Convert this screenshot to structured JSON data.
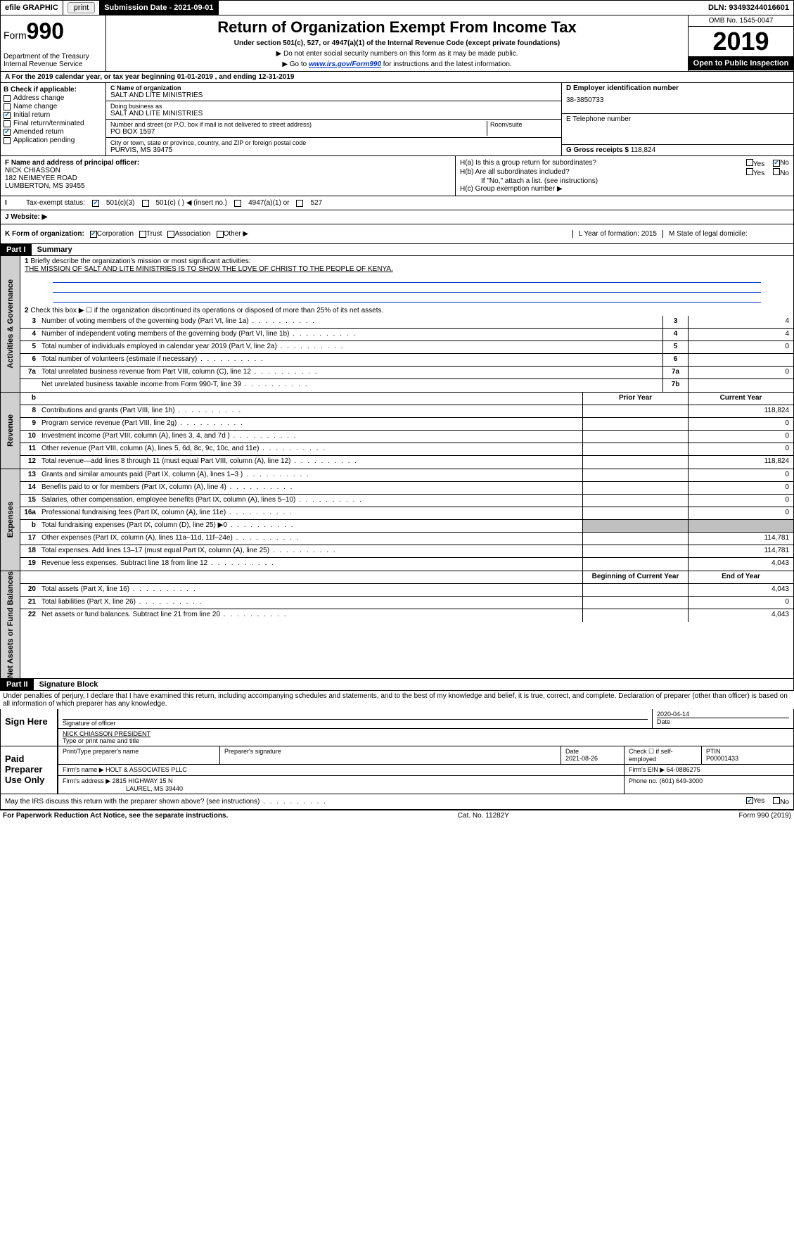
{
  "topbar": {
    "efile": "efile GRAPHIC",
    "print": "print",
    "subdate_lbl": "Submission Date - 2021-09-01",
    "dln": "DLN: 93493244016601"
  },
  "header": {
    "form_prefix": "Form",
    "form_num": "990",
    "dept": "Department of the Treasury",
    "irs": "Internal Revenue Service",
    "title": "Return of Organization Exempt From Income Tax",
    "sub": "Under section 501(c), 527, or 4947(a)(1) of the Internal Revenue Code (except private foundations)",
    "note1": "▶ Do not enter social security numbers on this form as it may be made public.",
    "note2_pre": "▶ Go to ",
    "note2_link": "www.irs.gov/Form990",
    "note2_post": " for instructions and the latest information.",
    "omb": "OMB No. 1545-0047",
    "year": "2019",
    "open": "Open to Public Inspection"
  },
  "row_a": "A For the 2019 calendar year, or tax year beginning 01-01-2019   , and ending 12-31-2019",
  "b": {
    "hdr": "B Check if applicable:",
    "items": [
      {
        "label": "Address change",
        "checked": false
      },
      {
        "label": "Name change",
        "checked": false
      },
      {
        "label": "Initial return",
        "checked": true
      },
      {
        "label": "Final return/terminated",
        "checked": false
      },
      {
        "label": "Amended return",
        "checked": true
      },
      {
        "label": "Application pending",
        "checked": false
      }
    ]
  },
  "c": {
    "name_lbl": "C Name of organization",
    "name": "SALT AND LITE MINISTRIES",
    "dba_lbl": "Doing business as",
    "dba": "SALT AND LITE MINISTRIES",
    "addr_lbl": "Number and street (or P.O. box if mail is not delivered to street address)",
    "room_lbl": "Room/suite",
    "addr": "PO BOX 1597",
    "city_lbl": "City or town, state or province, country, and ZIP or foreign postal code",
    "city": "PURVIS, MS  39475"
  },
  "d": {
    "lbl": "D Employer identification number",
    "val": "38-3850733"
  },
  "e": {
    "lbl": "E Telephone number",
    "val": ""
  },
  "g": {
    "lbl": "G Gross receipts $",
    "val": "118,824"
  },
  "f": {
    "lbl": "F  Name and address of principal officer:",
    "name": "NICK CHIASSON",
    "addr1": "182 NEIMEYEE ROAD",
    "addr2": "LUMBERTON, MS  39455"
  },
  "h": {
    "a": "H(a)  Is this a group return for subordinates?",
    "b": "H(b)  Are all subordinates included?",
    "b_note": "If \"No,\" attach a list. (see instructions)",
    "c": "H(c)  Group exemption number ▶"
  },
  "i": {
    "lbl": "Tax-exempt status:",
    "opt1": "501(c)(3)",
    "opt2": "501(c) (  ) ◀ (insert no.)",
    "opt3": "4947(a)(1) or",
    "opt4": "527"
  },
  "j": "J    Website: ▶",
  "k": {
    "lbl": "K Form of organization:",
    "o1": "Corporation",
    "o2": "Trust",
    "o3": "Association",
    "o4": "Other ▶",
    "l": "L Year of formation: 2015",
    "m": "M State of legal domicile:"
  },
  "part1": {
    "hdr": "Part I",
    "title": "Summary"
  },
  "gov": {
    "tab": "Activities & Governance",
    "l1": "Briefly describe the organization's mission or most significant activities:",
    "mission": "THE MISSION OF SALT AND LITE MINISTRIES IS TO SHOW THE LOVE OF CHRIST TO THE PEOPLE OF KENYA.",
    "l2": "Check this box ▶ ☐ if the organization discontinued its operations or disposed of more than 25% of its net assets.",
    "lines": [
      {
        "n": "3",
        "t": "Number of voting members of the governing body (Part VI, line 1a)",
        "b": "3",
        "v": "4"
      },
      {
        "n": "4",
        "t": "Number of independent voting members of the governing body (Part VI, line 1b)",
        "b": "4",
        "v": "4"
      },
      {
        "n": "5",
        "t": "Total number of individuals employed in calendar year 2019 (Part V, line 2a)",
        "b": "5",
        "v": "0"
      },
      {
        "n": "6",
        "t": "Total number of volunteers (estimate if necessary)",
        "b": "6",
        "v": ""
      },
      {
        "n": "7a",
        "t": "Total unrelated business revenue from Part VIII, column (C), line 12",
        "b": "7a",
        "v": "0"
      },
      {
        "n": "",
        "t": "Net unrelated business taxable income from Form 990-T, line 39",
        "b": "7b",
        "v": ""
      }
    ]
  },
  "rev": {
    "tab": "Revenue",
    "hdr_b": "b",
    "hdr_prior": "Prior Year",
    "hdr_curr": "Current Year",
    "lines": [
      {
        "n": "8",
        "t": "Contributions and grants (Part VIII, line 1h)",
        "p": "",
        "c": "118,824"
      },
      {
        "n": "9",
        "t": "Program service revenue (Part VIII, line 2g)",
        "p": "",
        "c": "0"
      },
      {
        "n": "10",
        "t": "Investment income (Part VIII, column (A), lines 3, 4, and 7d )",
        "p": "",
        "c": "0"
      },
      {
        "n": "11",
        "t": "Other revenue (Part VIII, column (A), lines 5, 6d, 8c, 9c, 10c, and 11e)",
        "p": "",
        "c": "0"
      },
      {
        "n": "12",
        "t": "Total revenue—add lines 8 through 11 (must equal Part VIII, column (A), line 12)",
        "p": "",
        "c": "118,824"
      }
    ]
  },
  "exp": {
    "tab": "Expenses",
    "lines": [
      {
        "n": "13",
        "t": "Grants and similar amounts paid (Part IX, column (A), lines 1–3 )",
        "p": "",
        "c": "0"
      },
      {
        "n": "14",
        "t": "Benefits paid to or for members (Part IX, column (A), line 4)",
        "p": "",
        "c": "0"
      },
      {
        "n": "15",
        "t": "Salaries, other compensation, employee benefits (Part IX, column (A), lines 5–10)",
        "p": "",
        "c": "0"
      },
      {
        "n": "16a",
        "t": "Professional fundraising fees (Part IX, column (A), line 11e)",
        "p": "",
        "c": "0"
      },
      {
        "n": "b",
        "t": "Total fundraising expenses (Part IX, column (D), line 25) ▶0",
        "p": "shade",
        "c": "shade"
      },
      {
        "n": "17",
        "t": "Other expenses (Part IX, column (A), lines 11a–11d, 11f–24e)",
        "p": "",
        "c": "114,781"
      },
      {
        "n": "18",
        "t": "Total expenses. Add lines 13–17 (must equal Part IX, column (A), line 25)",
        "p": "",
        "c": "114,781"
      },
      {
        "n": "19",
        "t": "Revenue less expenses. Subtract line 18 from line 12",
        "p": "",
        "c": "4,043"
      }
    ]
  },
  "net": {
    "tab": "Net Assets or Fund Balances",
    "hdr_beg": "Beginning of Current Year",
    "hdr_end": "End of Year",
    "lines": [
      {
        "n": "20",
        "t": "Total assets (Part X, line 16)",
        "p": "",
        "c": "4,043"
      },
      {
        "n": "21",
        "t": "Total liabilities (Part X, line 26)",
        "p": "",
        "c": "0"
      },
      {
        "n": "22",
        "t": "Net assets or fund balances. Subtract line 21 from line 20",
        "p": "",
        "c": "4,043"
      }
    ]
  },
  "part2": {
    "hdr": "Part II",
    "title": "Signature Block"
  },
  "penalty": "Under penalties of perjury, I declare that I have examined this return, including accompanying schedules and statements, and to the best of my knowledge and belief, it is true, correct, and complete. Declaration of preparer (other than officer) is based on all information of which preparer has any knowledge.",
  "sign": {
    "lbl": "Sign Here",
    "sig_lbl": "Signature of officer",
    "date": "2020-04-14",
    "date_lbl": "Date",
    "name": "NICK CHIASSON  PRESIDENT",
    "name_lbl": "Type or print name and title"
  },
  "paid": {
    "lbl": "Paid Preparer Use Only",
    "h1": "Print/Type preparer's name",
    "h2": "Preparer's signature",
    "h3": "Date",
    "date": "2021-08-26",
    "h4": "Check ☐ if self-employed",
    "h5": "PTIN",
    "ptin": "P00001433",
    "firm_lbl": "Firm's name    ▶",
    "firm": "HOLT & ASSOCIATES PLLC",
    "ein_lbl": "Firm's EIN ▶",
    "ein": "64-0886275",
    "addr_lbl": "Firm's address ▶",
    "addr1": "2815 HIGHWAY 15 N",
    "addr2": "LAUREL, MS  39440",
    "phone_lbl": "Phone no.",
    "phone": "(601) 649-3000"
  },
  "discuss": "May the IRS discuss this return with the preparer shown above? (see instructions)",
  "footer": {
    "left": "For Paperwork Reduction Act Notice, see the separate instructions.",
    "mid": "Cat. No. 11282Y",
    "right": "Form 990 (2019)"
  },
  "colors": {
    "link": "#0033cc",
    "check": "#0066cc",
    "shade": "#c0c0c0"
  }
}
